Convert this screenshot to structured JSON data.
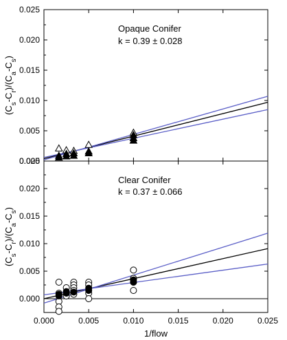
{
  "chart_data": [
    {
      "type": "scatter",
      "panel": "top",
      "annotation_title": "Opaque Conifer",
      "annotation_k": "k = 0.39 ± 0.028",
      "xlim": [
        0.0,
        0.025
      ],
      "ylim": [
        0.0,
        0.025
      ],
      "y_ticks": [
        "0.000",
        "0.005",
        "0.010",
        "0.015",
        "0.020",
        "0.025"
      ],
      "ylabel_parts": [
        "(C",
        "s",
        "-C",
        "r",
        ")/(C",
        "a",
        "-C",
        "s",
        ")"
      ],
      "series": [
        {
          "marker": "open-triangle",
          "points": [
            [
              0.00167,
              0.0021
            ],
            [
              0.0025,
              0.0018
            ],
            [
              0.00333,
              0.0017
            ],
            [
              0.005,
              0.0027
            ],
            [
              0.01,
              0.0047
            ]
          ]
        },
        {
          "marker": "filled-triangle",
          "points": [
            [
              0.00167,
              0.0006
            ],
            [
              0.00167,
              0.0009
            ],
            [
              0.0025,
              0.0008
            ],
            [
              0.0025,
              0.0012
            ],
            [
              0.00333,
              0.0009
            ],
            [
              0.00333,
              0.0013
            ],
            [
              0.005,
              0.0013
            ],
            [
              0.005,
              0.0016
            ],
            [
              0.01,
              0.0034
            ],
            [
              0.01,
              0.0038
            ],
            [
              0.01,
              0.0043
            ]
          ]
        }
      ],
      "fit_lines": [
        {
          "role": "fit",
          "color": "#000000",
          "x": [
            0.0,
            0.025
          ],
          "y": [
            0.0004,
            0.0097
          ]
        },
        {
          "role": "ci-upper",
          "color": "#5b5fc7",
          "x": [
            0.0,
            0.025
          ],
          "y": [
            0.0002,
            0.0107
          ]
        },
        {
          "role": "ci-lower",
          "color": "#5b5fc7",
          "x": [
            0.0,
            0.025
          ],
          "y": [
            0.0006,
            0.0085
          ]
        }
      ]
    },
    {
      "type": "scatter",
      "panel": "bottom",
      "annotation_title": "Clear Conifer",
      "annotation_k": "k = 0.37 ± 0.066",
      "xlim": [
        0.0,
        0.025
      ],
      "ylim": [
        -0.0025,
        0.025
      ],
      "x_ticks": [
        "0.000",
        "0.005",
        "0.010",
        "0.015",
        "0.020",
        "0.025"
      ],
      "y_ticks": [
        "0.000",
        "0.005",
        "0.010",
        "0.015",
        "0.020",
        "0.025"
      ],
      "xlabel": "1/flow",
      "ylabel_parts": [
        "(C",
        "s",
        "-C",
        "r",
        ")/(C",
        "a",
        "-C",
        "s",
        ")"
      ],
      "series": [
        {
          "marker": "open-circle",
          "points": [
            [
              0.00167,
              0.003
            ],
            [
              0.00167,
              0.001
            ],
            [
              0.00167,
              -0.0005
            ],
            [
              0.00167,
              -0.0015
            ],
            [
              0.00167,
              -0.0023
            ],
            [
              0.0025,
              0.002
            ],
            [
              0.0025,
              0.0005
            ],
            [
              0.00333,
              0.003
            ],
            [
              0.00333,
              0.0025
            ],
            [
              0.00333,
              0.002
            ],
            [
              0.00333,
              0.0015
            ],
            [
              0.00333,
              0.0008
            ],
            [
              0.005,
              0.003
            ],
            [
              0.005,
              0.0025
            ],
            [
              0.005,
              0.001
            ],
            [
              0.005,
              0.0
            ],
            [
              0.01,
              0.0052
            ],
            [
              0.01,
              0.0037
            ],
            [
              0.01,
              0.003
            ],
            [
              0.01,
              0.0015
            ]
          ]
        },
        {
          "marker": "filled-circle",
          "points": [
            [
              0.00167,
              0.0005
            ],
            [
              0.00167,
              0.0008
            ],
            [
              0.0025,
              0.001
            ],
            [
              0.0025,
              0.0013
            ],
            [
              0.00333,
              0.0012
            ],
            [
              0.005,
              0.0015
            ],
            [
              0.005,
              0.0019
            ],
            [
              0.01,
              0.003
            ],
            [
              0.01,
              0.0034
            ]
          ]
        }
      ],
      "fit_lines": [
        {
          "role": "fit",
          "color": "#000000",
          "x": [
            0.0,
            0.025
          ],
          "y": [
            0.0,
            0.0091
          ]
        },
        {
          "role": "ci-upper",
          "color": "#5b5fc7",
          "x": [
            0.0,
            0.025
          ],
          "y": [
            -0.0008,
            0.0119
          ]
        },
        {
          "role": "ci-lower",
          "color": "#5b5fc7",
          "x": [
            0.0,
            0.025
          ],
          "y": [
            0.0007,
            0.0063
          ]
        }
      ]
    }
  ]
}
